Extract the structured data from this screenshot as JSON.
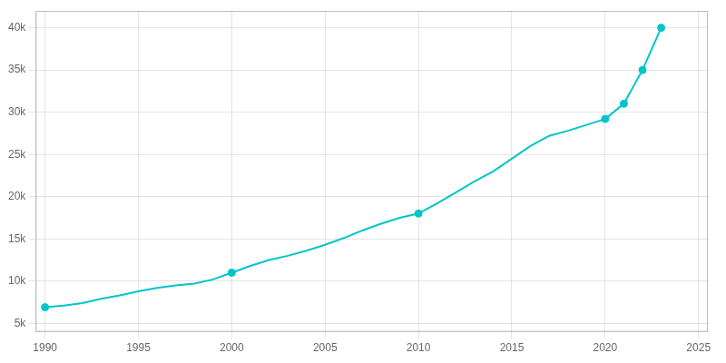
{
  "chart_data": {
    "type": "line",
    "series": [
      {
        "type": "line",
        "color": "#00C5C8",
        "x": [
          1990,
          1991,
          1992,
          1993,
          1994,
          1995,
          1996,
          1997,
          1998,
          1999,
          2000,
          2001,
          2002,
          2003,
          2004,
          2005,
          2006,
          2007,
          2008,
          2009,
          2010,
          2011,
          2012,
          2013,
          2014,
          2015,
          2016,
          2017,
          2018,
          2019,
          2020,
          2021,
          2022,
          2023
        ],
        "values": [
          6900,
          7100,
          7400,
          7900,
          8300,
          8800,
          9200,
          9500,
          9700,
          10200,
          11000,
          11800,
          12500,
          13000,
          13600,
          14300,
          15100,
          16000,
          16800,
          17500,
          18000,
          19200,
          20500,
          21800,
          23000,
          24500,
          26000,
          27200,
          27800,
          28500,
          29200,
          31000,
          35000,
          40000
        ]
      },
      {
        "type": "scatter",
        "marker": "circle",
        "color": "#00C5C8",
        "x": [
          1990,
          2000,
          2010,
          2020,
          2021,
          2022,
          2023
        ],
        "values": [
          6900,
          11000,
          18000,
          29200,
          31000,
          35000,
          40000
        ]
      }
    ],
    "xlim": [
      1989.5,
      2025.5
    ],
    "ylim": [
      4000,
      42000
    ],
    "xticks": [
      1990,
      1995,
      2000,
      2005,
      2010,
      2015,
      2020,
      2025
    ],
    "yticks": [
      {
        "value": 5000,
        "label": "5k"
      },
      {
        "value": 10000,
        "label": "10k"
      },
      {
        "value": 15000,
        "label": "15k"
      },
      {
        "value": 20000,
        "label": "20k"
      },
      {
        "value": 25000,
        "label": "25k"
      },
      {
        "value": 30000,
        "label": "30k"
      },
      {
        "value": 35000,
        "label": "35k"
      },
      {
        "value": 40000,
        "label": "40k"
      }
    ],
    "grid": true
  }
}
